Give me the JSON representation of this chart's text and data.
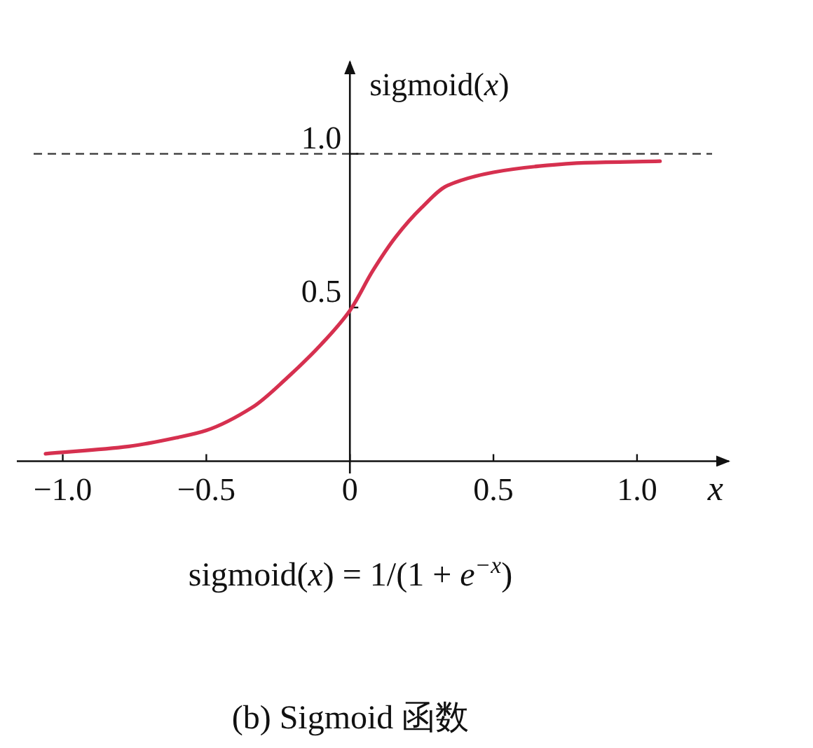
{
  "chart_data": {
    "type": "line",
    "xlabel": "*x*",
    "ylabel": "sigmoid(*x*)",
    "x": [
      -1.06,
      -0.77,
      -0.59,
      -0.5,
      -0.34,
      -0.22,
      -0.1,
      0,
      0.08,
      0.16,
      0.25,
      0.34,
      0.5,
      0.66,
      0.82,
      1.08
    ],
    "series": [
      {
        "color": "#d6304f",
        "values": [
          0.024,
          0.048,
          0.079,
          0.1,
          0.175,
          0.27,
          0.38,
          0.49,
          0.62,
          0.73,
          0.825,
          0.897,
          0.94,
          0.96,
          0.971,
          0.976
        ]
      }
    ],
    "xlim": [
      -1.16,
      1.32
    ],
    "ylim": [
      -0.04,
      1.3
    ],
    "xticks": [
      {
        "value": -1,
        "label": "−1.0"
      },
      {
        "value": -0.5,
        "label": "−0.5"
      },
      0,
      0.5,
      {
        "value": 1,
        "label": "1.0"
      }
    ],
    "yticks": [
      0.5,
      {
        "value": 1,
        "label": "1.0"
      }
    ],
    "ref_lines": [
      {
        "axis": "y",
        "value": 1,
        "line_style": "dashed",
        "color": "#333333"
      }
    ],
    "line_style": "solid",
    "annotations": [
      "sigmoid(*x*) = 1/(1 + *e*$^{−x}$)",
      "(b) Sigmoid 函数"
    ]
  }
}
